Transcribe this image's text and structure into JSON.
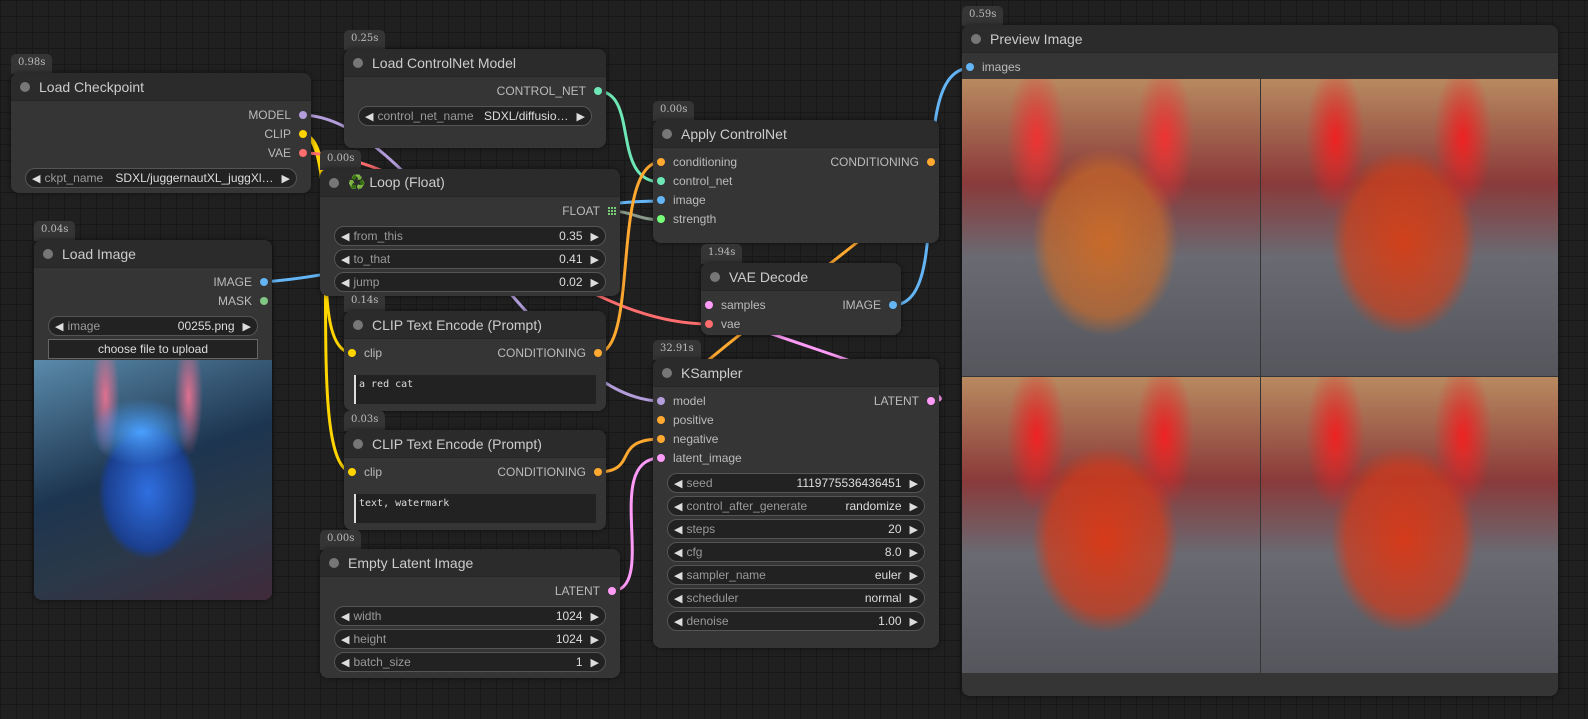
{
  "colors": {
    "model": "#b39ddb",
    "clip": "#ffd500",
    "vae": "#ff6e6e",
    "conditioning": "#ffa931",
    "control_net": "#6ee7b7",
    "image": "#64b5f6",
    "mask": "#81c784",
    "latent": "#ff9cf9",
    "float": "#7c7",
    "strength": "#7f7"
  },
  "nodes": [
    {
      "id": "load_checkpoint",
      "title": "Load Checkpoint",
      "time": "0.98s",
      "inputs": [],
      "outputs": [
        {
          "label": "MODEL",
          "type": "model"
        },
        {
          "label": "CLIP",
          "type": "clip"
        },
        {
          "label": "VAE",
          "type": "vae"
        }
      ],
      "widgets": [
        {
          "label": "ckpt_name",
          "value": "SDXL/juggernautXL_juggXl…"
        }
      ]
    },
    {
      "id": "load_controlnet",
      "title": "Load ControlNet Model",
      "time": "0.25s",
      "inputs": [],
      "outputs": [
        {
          "label": "CONTROL_NET",
          "type": "control_net"
        }
      ],
      "widgets": [
        {
          "label": "control_net_name",
          "value": "SDXL/diffusio…"
        }
      ]
    },
    {
      "id": "loop_float",
      "title": "♻️ Loop (Float)",
      "time": "0.00s",
      "inputs": [],
      "outputs": [
        {
          "label": "FLOAT",
          "type": "float"
        }
      ],
      "widgets": [
        {
          "label": "from_this",
          "value": "0.35"
        },
        {
          "label": "to_that",
          "value": "0.41"
        },
        {
          "label": "jump",
          "value": "0.02"
        }
      ]
    },
    {
      "id": "load_image",
      "title": "Load Image",
      "time": "0.04s",
      "inputs": [],
      "outputs": [
        {
          "label": "IMAGE",
          "type": "image"
        },
        {
          "label": "MASK",
          "type": "mask"
        }
      ],
      "widgets": [
        {
          "label": "image",
          "value": "00255.png"
        }
      ],
      "button": "choose file to upload"
    },
    {
      "id": "apply_controlnet",
      "title": "Apply ControlNet",
      "time": "0.00s",
      "inputs": [
        {
          "label": "conditioning",
          "type": "conditioning"
        },
        {
          "label": "control_net",
          "type": "control_net"
        },
        {
          "label": "image",
          "type": "image"
        },
        {
          "label": "strength",
          "type": "strength"
        }
      ],
      "outputs": [
        {
          "label": "CONDITIONING",
          "type": "conditioning"
        }
      ],
      "widgets": []
    },
    {
      "id": "vae_decode",
      "title": "VAE Decode",
      "time": "1.94s",
      "inputs": [
        {
          "label": "samples",
          "type": "latent"
        },
        {
          "label": "vae",
          "type": "vae"
        }
      ],
      "outputs": [
        {
          "label": "IMAGE",
          "type": "image"
        }
      ],
      "widgets": []
    },
    {
      "id": "clip_text_positive",
      "title": "CLIP Text Encode (Prompt)",
      "time": "0.14s",
      "inputs": [
        {
          "label": "clip",
          "type": "clip"
        }
      ],
      "outputs": [
        {
          "label": "CONDITIONING",
          "type": "conditioning"
        }
      ],
      "widgets": [],
      "text": "a red cat"
    },
    {
      "id": "clip_text_negative",
      "title": "CLIP Text Encode (Prompt)",
      "time": "0.03s",
      "inputs": [
        {
          "label": "clip",
          "type": "clip"
        }
      ],
      "outputs": [
        {
          "label": "CONDITIONING",
          "type": "conditioning"
        }
      ],
      "widgets": [],
      "text": "text, watermark"
    },
    {
      "id": "empty_latent",
      "title": "Empty Latent Image",
      "time": "0.00s",
      "inputs": [],
      "outputs": [
        {
          "label": "LATENT",
          "type": "latent"
        }
      ],
      "widgets": [
        {
          "label": "width",
          "value": "1024"
        },
        {
          "label": "height",
          "value": "1024"
        },
        {
          "label": "batch_size",
          "value": "1"
        }
      ]
    },
    {
      "id": "ksampler",
      "title": "KSampler",
      "time": "32.91s",
      "inputs": [
        {
          "label": "model",
          "type": "model"
        },
        {
          "label": "positive",
          "type": "conditioning"
        },
        {
          "label": "negative",
          "type": "conditioning"
        },
        {
          "label": "latent_image",
          "type": "latent"
        }
      ],
      "outputs": [
        {
          "label": "LATENT",
          "type": "latent"
        }
      ],
      "widgets": [
        {
          "label": "seed",
          "value": "1119775536436451"
        },
        {
          "label": "control_after_generate",
          "value": "randomize"
        },
        {
          "label": "steps",
          "value": "20"
        },
        {
          "label": "cfg",
          "value": "8.0"
        },
        {
          "label": "sampler_name",
          "value": "euler"
        },
        {
          "label": "scheduler",
          "value": "normal"
        },
        {
          "label": "denoise",
          "value": "1.00"
        }
      ]
    },
    {
      "id": "preview_image",
      "title": "Preview Image",
      "time": "0.59s",
      "inputs": [
        {
          "label": "images",
          "type": "image"
        }
      ],
      "outputs": [],
      "widgets": []
    }
  ]
}
